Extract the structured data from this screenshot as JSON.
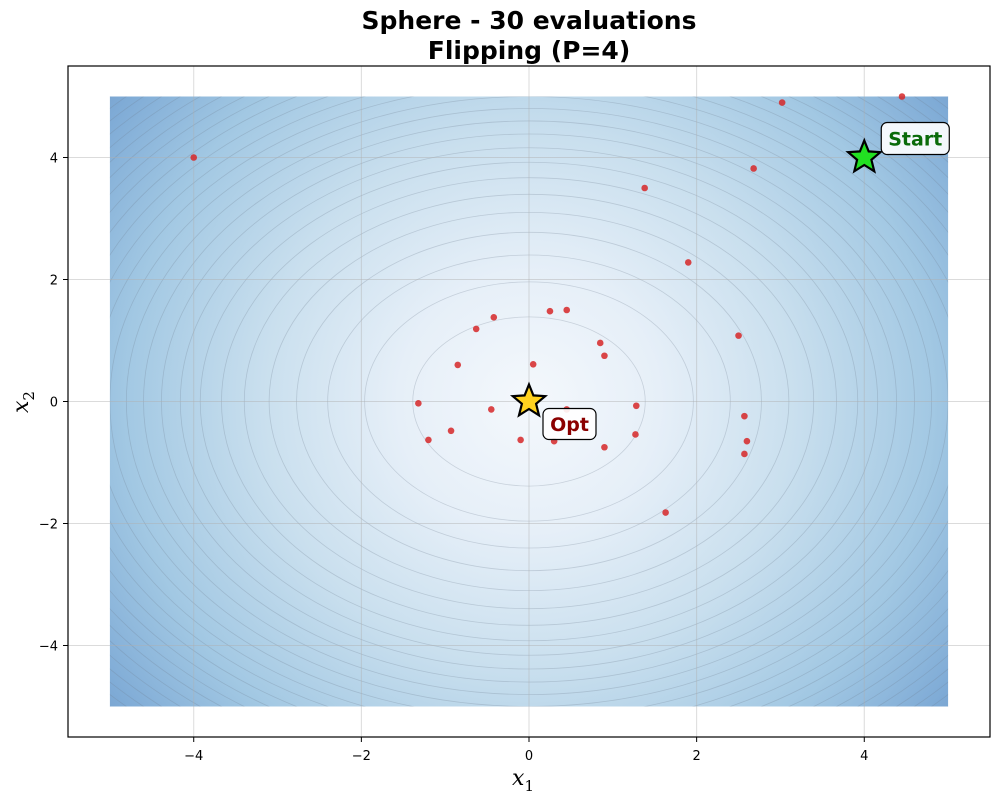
{
  "chart_data": {
    "type": "scatter",
    "title": "Sphere - 30 evaluations",
    "subtitle": "Flipping (P=4)",
    "xlabel": "x",
    "xlabel_sub": "1",
    "ylabel": "x",
    "ylabel_sub": "2",
    "xlim": [
      -5.5,
      5.5
    ],
    "ylim": [
      -5.5,
      5.5
    ],
    "domain": [
      -5,
      5
    ],
    "xticks": [
      -4,
      -2,
      0,
      2,
      4
    ],
    "yticks": [
      -4,
      -2,
      0,
      2,
      4
    ],
    "grid": true,
    "contour_function": "x1^2 + x2^2",
    "colormap": [
      "#f4f8fc",
      "#6b91bf"
    ],
    "points_color": "#d62728",
    "points": [
      {
        "x": -4.0,
        "y": 4.0
      },
      {
        "x": 3.02,
        "y": 4.9
      },
      {
        "x": 4.45,
        "y": 5.0
      },
      {
        "x": 2.68,
        "y": 3.82
      },
      {
        "x": 1.38,
        "y": 3.5
      },
      {
        "x": 1.9,
        "y": 2.28
      },
      {
        "x": 0.25,
        "y": 1.48
      },
      {
        "x": 0.45,
        "y": 1.5
      },
      {
        "x": -0.42,
        "y": 1.38
      },
      {
        "x": -0.63,
        "y": 1.19
      },
      {
        "x": 2.5,
        "y": 1.08
      },
      {
        "x": 0.85,
        "y": 0.96
      },
      {
        "x": 0.9,
        "y": 0.75
      },
      {
        "x": -0.85,
        "y": 0.6
      },
      {
        "x": 0.05,
        "y": 0.61
      },
      {
        "x": -1.32,
        "y": -0.03
      },
      {
        "x": -0.45,
        "y": -0.13
      },
      {
        "x": 0.45,
        "y": -0.13
      },
      {
        "x": 1.28,
        "y": -0.07
      },
      {
        "x": 2.57,
        "y": -0.24
      },
      {
        "x": -0.93,
        "y": -0.48
      },
      {
        "x": -1.2,
        "y": -0.63
      },
      {
        "x": -0.1,
        "y": -0.63
      },
      {
        "x": 0.3,
        "y": -0.65
      },
      {
        "x": 1.27,
        "y": -0.54
      },
      {
        "x": 2.6,
        "y": -0.65
      },
      {
        "x": 0.9,
        "y": -0.75
      },
      {
        "x": 2.57,
        "y": -0.86
      },
      {
        "x": 1.63,
        "y": -1.82
      }
    ],
    "start": {
      "x": 4.0,
      "y": 4.0,
      "label": "Start",
      "color": "#22e022",
      "text_color": "#0a6b0a"
    },
    "optimum": {
      "x": 0.0,
      "y": 0.0,
      "label": "Opt",
      "color": "#ffd21f",
      "text_color": "#8b0000"
    }
  }
}
